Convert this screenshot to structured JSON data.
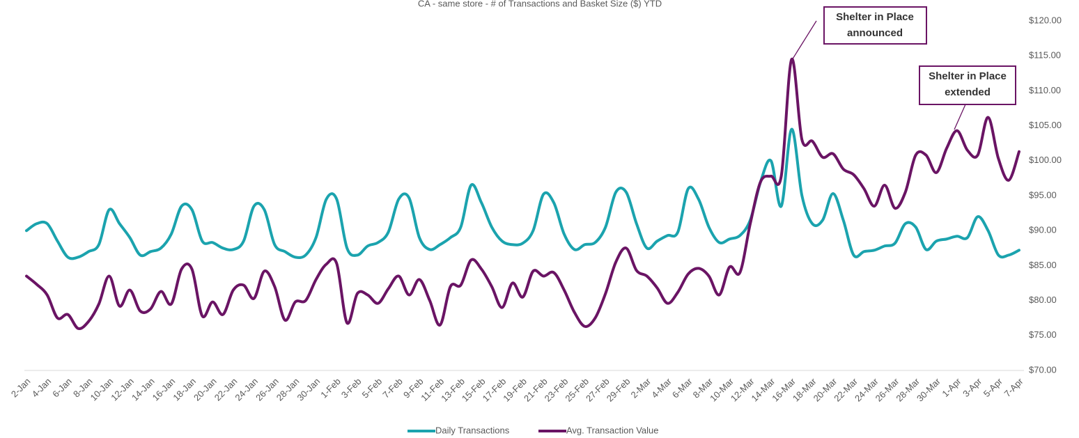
{
  "chart_data": {
    "type": "line",
    "title": "CA - same store - # of Transactions and Basket Size ($) YTD",
    "categories": [
      "2-Jan",
      null,
      "4-Jan",
      null,
      "6-Jan",
      null,
      "8-Jan",
      null,
      "10-Jan",
      null,
      "12-Jan",
      null,
      "14-Jan",
      null,
      "16-Jan",
      null,
      "18-Jan",
      null,
      "20-Jan",
      null,
      "22-Jan",
      null,
      "24-Jan",
      null,
      "26-Jan",
      null,
      "28-Jan",
      null,
      "30-Jan",
      null,
      "1-Feb",
      null,
      "3-Feb",
      null,
      "5-Feb",
      null,
      "7-Feb",
      null,
      "9-Feb",
      null,
      "11-Feb",
      null,
      "13-Feb",
      null,
      "15-Feb",
      null,
      "17-Feb",
      null,
      "19-Feb",
      null,
      "21-Feb",
      null,
      "23-Feb",
      null,
      "25-Feb",
      null,
      "27-Feb",
      null,
      "29-Feb",
      null,
      "2-Mar",
      null,
      "4-Mar",
      null,
      "6-Mar",
      null,
      "8-Mar",
      null,
      "10-Mar",
      null,
      "12-Mar",
      null,
      "14-Mar",
      null,
      "16-Mar",
      null,
      "18-Mar",
      null,
      "20-Mar",
      null,
      "22-Mar",
      null,
      "24-Mar",
      null,
      "26-Mar",
      null,
      "28-Mar",
      null,
      "30-Mar",
      null,
      "1-Apr",
      null,
      "3-Apr",
      null,
      "5-Apr",
      null,
      "7-Apr"
    ],
    "series": [
      {
        "name": "Daily Transactions",
        "color": "#1ba3ae",
        "values": [
          90.0,
          91.0,
          91.0,
          88.5,
          86.2,
          86.2,
          87.0,
          88.0,
          93.0,
          91.0,
          89.0,
          86.5,
          87.0,
          87.5,
          89.5,
          93.5,
          93.0,
          88.5,
          88.3,
          87.5,
          87.3,
          88.5,
          93.5,
          93.0,
          88.0,
          87.0,
          86.2,
          86.5,
          89.0,
          94.5,
          94.5,
          87.5,
          86.5,
          87.8,
          88.3,
          89.8,
          94.5,
          94.7,
          89.0,
          87.3,
          88.0,
          89.0,
          90.5,
          96.5,
          94.0,
          90.5,
          88.5,
          88.0,
          88.2,
          90.0,
          95.2,
          94.0,
          89.5,
          87.3,
          88.0,
          88.3,
          90.5,
          95.5,
          95.5,
          91.0,
          87.5,
          88.5,
          89.3,
          89.8,
          96.0,
          94.5,
          90.5,
          88.3,
          88.8,
          89.3,
          91.5,
          97.0,
          100.0,
          93.5,
          104.5,
          95.0,
          91.0,
          91.5,
          95.3,
          91.5,
          86.5,
          87.0,
          87.2,
          87.8,
          88.2,
          91.0,
          90.5,
          87.3,
          88.5,
          88.8,
          89.2,
          89.0,
          92.0,
          90.0,
          86.5,
          86.5,
          87.2
        ]
      },
      {
        "name": "Avg. Transaction Value",
        "color": "#6a1464",
        "values": [
          83.5,
          82.3,
          80.8,
          77.5,
          78,
          76,
          77,
          79.5,
          83.5,
          79.2,
          81.5,
          78.5,
          78.8,
          81.3,
          79.5,
          84.5,
          84.5,
          77.8,
          79.8,
          78,
          81.5,
          82.2,
          80.3,
          84.2,
          82,
          77.2,
          79.8,
          80,
          83,
          85.2,
          85.3,
          76.8,
          81,
          80.8,
          79.6,
          81.7,
          83.5,
          80.8,
          83,
          80,
          76.5,
          82,
          82.2,
          85.8,
          84.5,
          82,
          79,
          82.5,
          80.5,
          84.2,
          83.5,
          84,
          81.5,
          78.3,
          76.3,
          77.5,
          81,
          85.5,
          87.5,
          84.3,
          83.5,
          81.8,
          79.6,
          81.2,
          83.8,
          84.6,
          83.5,
          80.8,
          84.8,
          84,
          91,
          97,
          97.8,
          97.8,
          114.5,
          103,
          102.8,
          100.5,
          101,
          98.8,
          98,
          96,
          93.5,
          96.5,
          93.2,
          95.5,
          100.8,
          100.8,
          98.3,
          101.8,
          104.3,
          101.5,
          100.8,
          106.2,
          100.3,
          97.2,
          101.3
        ]
      }
    ],
    "ylim": [
      70,
      120
    ],
    "yticks": [
      {
        "value": 70,
        "label": "$70.00"
      },
      {
        "value": 75,
        "label": "$75.00"
      },
      {
        "value": 80,
        "label": "$80.00"
      },
      {
        "value": 85,
        "label": "$85.00"
      },
      {
        "value": 90,
        "label": "$90.00"
      },
      {
        "value": 95,
        "label": "$95.00"
      },
      {
        "value": 100,
        "label": "$100.00"
      },
      {
        "value": 105,
        "label": "$105.00"
      },
      {
        "value": 110,
        "label": "$110.00"
      },
      {
        "value": 115,
        "label": "$115.00"
      },
      {
        "value": 120,
        "label": "$120.00"
      }
    ],
    "grid": false,
    "legend": "bottom",
    "annotations": [
      {
        "lines": [
          "Shelter in Place",
          "announced"
        ]
      },
      {
        "lines": [
          "Shelter in Place",
          "extended"
        ]
      }
    ]
  }
}
